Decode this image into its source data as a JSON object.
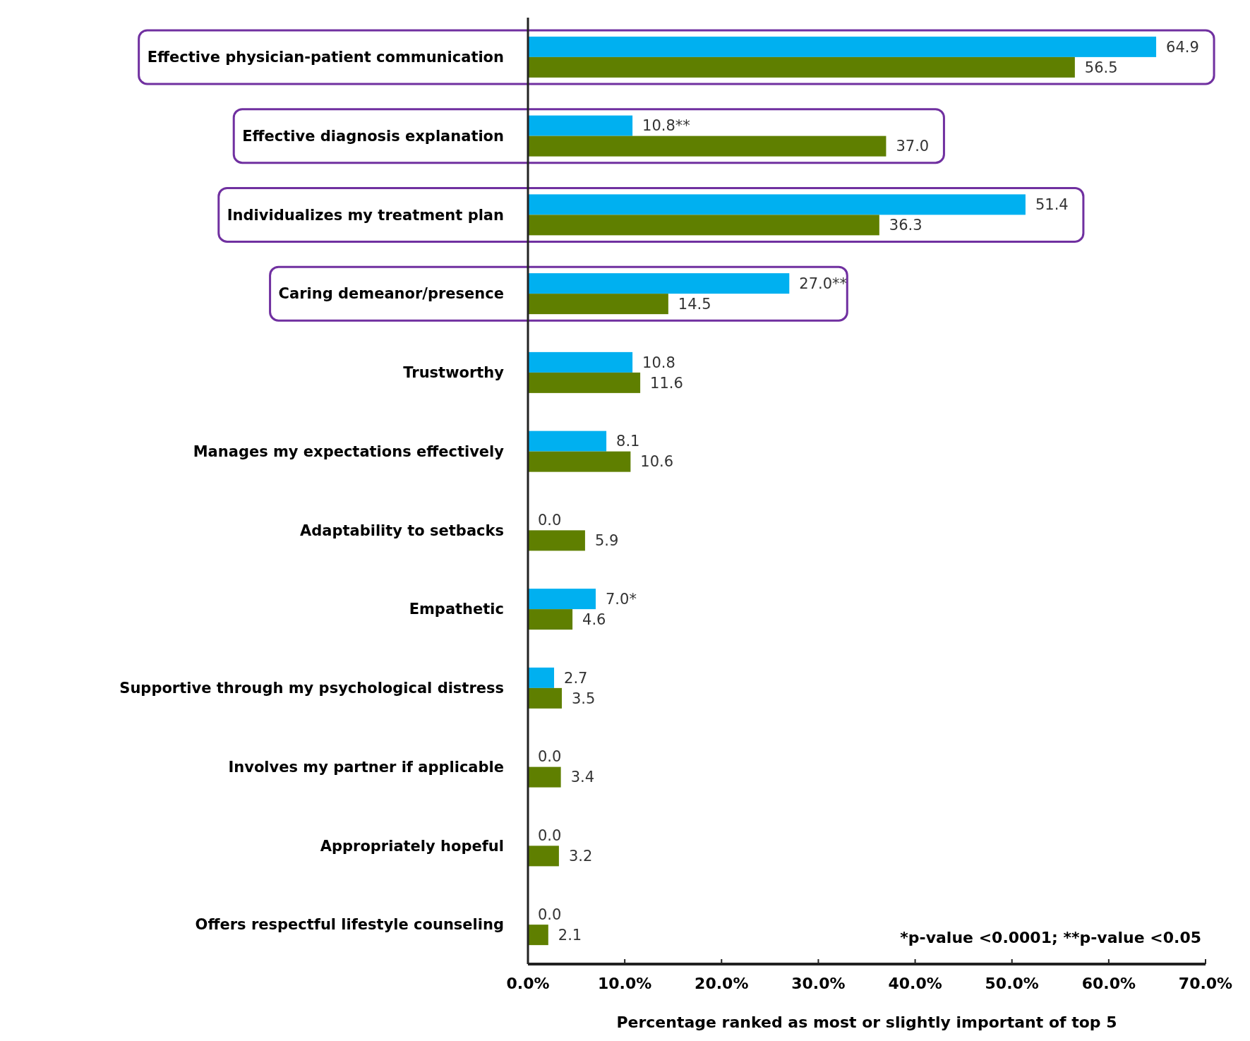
{
  "chart_data": {
    "type": "bar",
    "orientation": "horizontal",
    "xlabel": "Percentage ranked as most or slightly important of top 5",
    "categories": [
      "Effective physician-patient communication",
      "Effective diagnosis explanation",
      "Individualizes my treatment plan",
      "Caring demeanor/presence",
      "Trustworthy",
      "Manages my expectations effectively",
      "Adaptability to setbacks",
      "Empathetic",
      "Supportive through my psychological distress",
      "Involves my partner if applicable",
      "Appropriately hopeful",
      "Offers respectful lifestyle counseling"
    ],
    "series": [
      {
        "color": "#00b0f0",
        "values": [
          64.9,
          10.8,
          51.4,
          27.0,
          10.8,
          8.1,
          0.0,
          7.0,
          2.7,
          0.0,
          0.0,
          0.0
        ],
        "value_labels": [
          "64.9",
          "10.8**",
          "51.4",
          "27.0**",
          "10.8",
          "8.1",
          "0.0",
          "7.0*",
          "2.7",
          "0.0",
          "0.0",
          "0.0"
        ]
      },
      {
        "color": "#5f7f00",
        "values": [
          56.5,
          37.0,
          36.3,
          14.5,
          11.6,
          10.6,
          5.9,
          4.6,
          3.5,
          3.4,
          3.2,
          2.1
        ],
        "value_labels": [
          "56.5",
          "37.0",
          "36.3",
          "14.5",
          "11.6",
          "10.6",
          "5.9",
          "4.6",
          "3.5",
          "3.4",
          "3.2",
          "2.1"
        ]
      }
    ],
    "xlim": [
      0,
      70
    ],
    "xticks": [
      {
        "value": 0,
        "label": "0.0%"
      },
      {
        "value": 10,
        "label": "10.0%"
      },
      {
        "value": 20,
        "label": "20.0%"
      },
      {
        "value": 30,
        "label": "30.0%"
      },
      {
        "value": 40,
        "label": "40.0%"
      },
      {
        "value": 50,
        "label": "50.0%"
      },
      {
        "value": 60,
        "label": "60.0%"
      },
      {
        "value": 70,
        "label": "70.0%"
      }
    ],
    "annotations": [
      "*p-value <0.0001; **p-value <0.05"
    ]
  }
}
